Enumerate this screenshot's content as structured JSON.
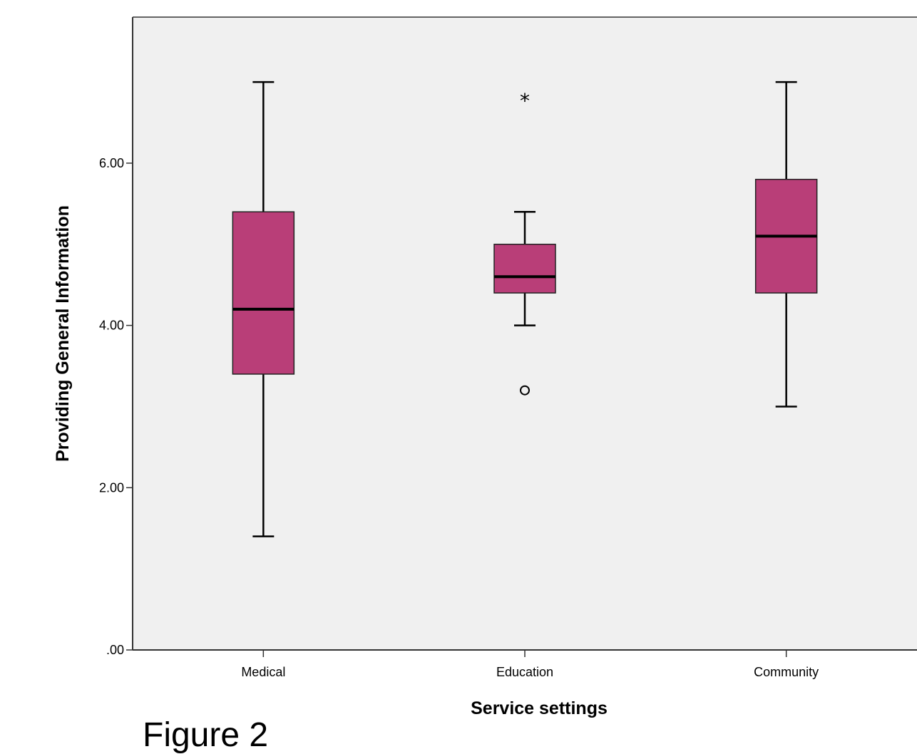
{
  "chart_data": {
    "type": "boxplot",
    "xlabel": "Service settings",
    "ylabel": "Providing General Information",
    "categories": [
      "Medical",
      "Education",
      "Community"
    ],
    "ylim": [
      0,
      7.8
    ],
    "yticks": [
      0,
      2,
      4,
      6
    ],
    "ytick_labels": [
      ".00",
      "2.00",
      "4.00",
      "6.00"
    ],
    "grid": false,
    "legend": "none",
    "colors": {
      "box_fill": "#b93e78",
      "plot_bg": "#f0f0f0",
      "stroke": "#000000"
    },
    "boxes": [
      {
        "category": "Medical",
        "min": 1.4,
        "q1": 3.4,
        "median": 4.2,
        "q3": 5.4,
        "max": 7.0,
        "outliers": [],
        "extremes": []
      },
      {
        "category": "Education",
        "min": 4.0,
        "q1": 4.4,
        "median": 4.6,
        "q3": 5.0,
        "max": 5.4,
        "outliers": [
          3.2
        ],
        "extremes": [
          6.8
        ]
      },
      {
        "category": "Community",
        "min": 3.0,
        "q1": 4.4,
        "median": 5.1,
        "q3": 5.8,
        "max": 7.0,
        "outliers": [],
        "extremes": []
      }
    ]
  },
  "caption": "Figure 2"
}
